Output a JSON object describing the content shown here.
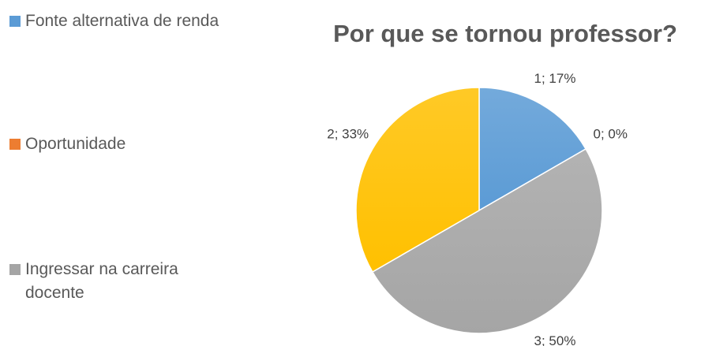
{
  "chart_data": {
    "type": "pie",
    "title": "Por que se tornou professor?",
    "categories": [
      "Fonte alternativa de renda",
      "Oportunidade",
      "Ingressar na carreira docente",
      null
    ],
    "values": [
      1,
      0,
      3,
      2
    ],
    "value_labels": [
      "1; 17%",
      "0; 0%",
      "3; 50%",
      "2; 33%"
    ],
    "colors": [
      "#5b9bd5",
      "#ed7d31",
      "#a5a5a5",
      "#ffc000"
    ],
    "legend": "left"
  }
}
